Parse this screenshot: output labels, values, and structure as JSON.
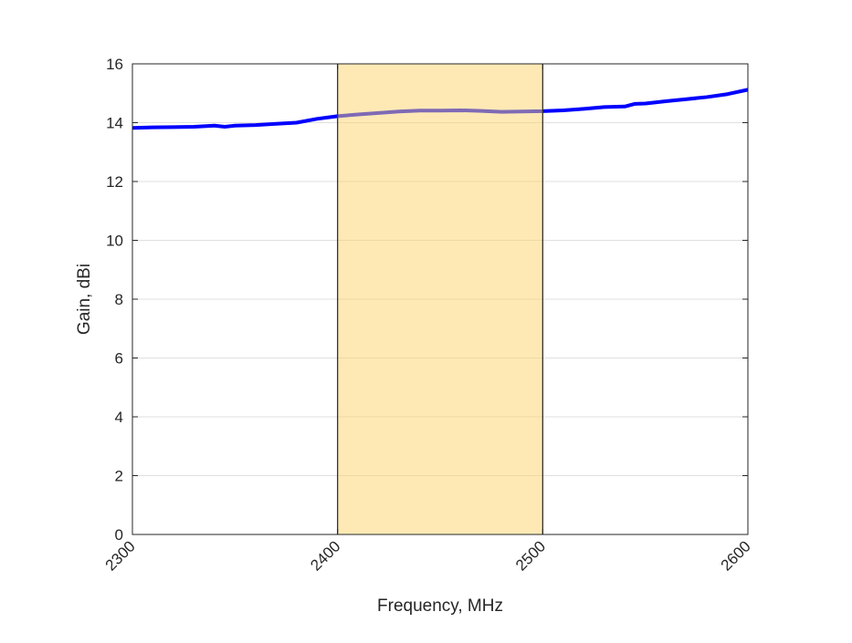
{
  "chart_data": {
    "type": "line",
    "title": "",
    "xlabel": "Frequency, MHz",
    "ylabel": "Gain, dBi",
    "xlim": [
      2300,
      2600
    ],
    "ylim": [
      0,
      16
    ],
    "xticks": [
      2300,
      2400,
      2500,
      2600
    ],
    "yticks": [
      0,
      2,
      4,
      6,
      8,
      10,
      12,
      14,
      16
    ],
    "grid": "horizontal",
    "highlight_band": {
      "x": [
        2400,
        2500
      ],
      "color": "#FDD36B",
      "opacity": 0.5
    },
    "series": [
      {
        "color": "#0000FF",
        "x": [
          2300,
          2310,
          2320,
          2330,
          2340,
          2345,
          2350,
          2360,
          2370,
          2380,
          2390,
          2400,
          2410,
          2420,
          2430,
          2440,
          2450,
          2460,
          2470,
          2480,
          2490,
          2500,
          2510,
          2520,
          2530,
          2540,
          2545,
          2550,
          2560,
          2570,
          2580,
          2590,
          2600
        ],
        "y": [
          13.82,
          13.84,
          13.85,
          13.86,
          13.9,
          13.86,
          13.9,
          13.92,
          13.96,
          14.0,
          14.13,
          14.22,
          14.28,
          14.33,
          14.38,
          14.41,
          14.41,
          14.42,
          14.4,
          14.37,
          14.38,
          14.39,
          14.42,
          14.47,
          14.53,
          14.55,
          14.64,
          14.65,
          14.73,
          14.8,
          14.87,
          14.97,
          15.12
        ]
      }
    ]
  }
}
